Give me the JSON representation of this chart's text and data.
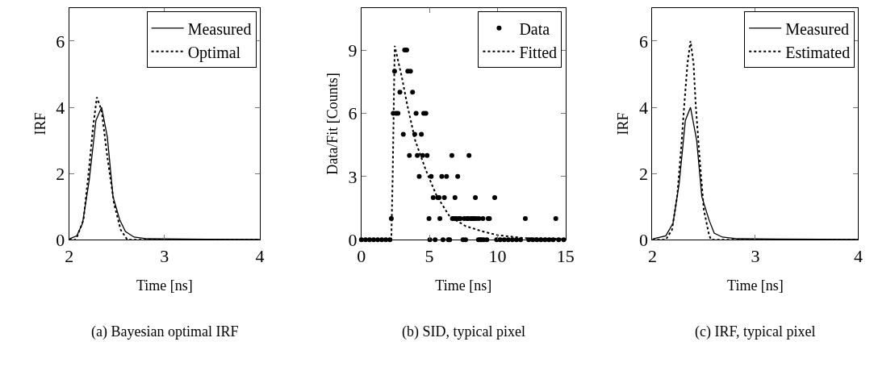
{
  "chart_data": [
    {
      "type": "line",
      "xlabel": "Time [ns]",
      "ylabel": "IRF",
      "annotations": [
        "(a) Bayesian optimal IRF"
      ],
      "xlim": [
        2,
        4
      ],
      "xticks": [
        2,
        3,
        4
      ],
      "ylim": [
        0,
        7
      ],
      "yticks": [
        0,
        2,
        4,
        6
      ],
      "legend": "top right",
      "series": [
        {
          "name": "Measured",
          "color": "#000000",
          "line_style": "solid",
          "x": [
            2.0,
            2.08,
            2.14,
            2.21,
            2.28,
            2.34,
            2.4,
            2.46,
            2.53,
            2.59,
            2.68,
            2.82,
            3.2,
            4.0
          ],
          "values": [
            0.02,
            0.12,
            0.5,
            1.8,
            3.6,
            4.0,
            3.1,
            1.3,
            0.6,
            0.25,
            0.08,
            0.03,
            0.02,
            0.01
          ]
        },
        {
          "name": "Optimal",
          "color": "#000000",
          "line_style": "dotted",
          "x": [
            2.0,
            2.07,
            2.15,
            2.21,
            2.25,
            2.29,
            2.34,
            2.4,
            2.47,
            2.54,
            2.61,
            3.0,
            4.0
          ],
          "values": [
            0,
            0,
            0.6,
            2.2,
            3.4,
            4.3,
            3.9,
            2.5,
            1.1,
            0.3,
            0,
            0,
            0
          ]
        }
      ]
    },
    {
      "type": "line",
      "xlabel": "Time [ns]",
      "ylabel": "Data/Fit [Counts]",
      "annotations": [
        "(b) SID, typical pixel"
      ],
      "xlim": [
        0,
        15
      ],
      "xticks": [
        0,
        5,
        10,
        15
      ],
      "ylim": [
        0,
        11
      ],
      "yticks": [
        0,
        3,
        6,
        9
      ],
      "legend": "top right",
      "series": [
        {
          "name": "Data",
          "color": "#000000",
          "type": "scatter",
          "marker": "circle",
          "x": [
            0,
            0.3,
            0.6,
            0.9,
            1.2,
            1.5,
            1.8,
            2.1,
            2.2,
            2.34,
            2.44,
            2.55,
            2.69,
            2.83,
            3.08,
            3.18,
            3.33,
            3.41,
            3.53,
            3.61,
            3.76,
            3.92,
            4.02,
            4.11,
            4.25,
            4.41,
            4.5,
            4.58,
            4.74,
            4.83,
            4.97,
            5.03,
            5.13,
            5.28,
            5.42,
            5.61,
            5.71,
            5.77,
            5.91,
            6.0,
            6.1,
            6.26,
            6.39,
            6.49,
            6.65,
            6.69,
            6.84,
            6.88,
            6.98,
            7.08,
            7.17,
            7.27,
            7.47,
            7.56,
            7.66,
            7.76,
            7.86,
            7.91,
            8.05,
            8.15,
            8.28,
            8.38,
            8.44,
            8.6,
            8.64,
            8.73,
            8.83,
            8.93,
            8.99,
            9.22,
            9.32,
            9.41,
            9.8,
            9.94,
            10.2,
            10.5,
            10.8,
            11.1,
            11.4,
            11.7,
            12.05,
            12.3,
            12.6,
            12.9,
            13.2,
            13.5,
            13.8,
            14.1,
            14.29,
            14.5,
            14.87
          ],
          "values": [
            0,
            0,
            0,
            0,
            0,
            0,
            0,
            0,
            1,
            6,
            8,
            6,
            6,
            7,
            5,
            9,
            9,
            8,
            4,
            8,
            7,
            5,
            6,
            4,
            3,
            5,
            4,
            6,
            6,
            4,
            1,
            0,
            3,
            2,
            0,
            2,
            2,
            1,
            3,
            0,
            2,
            3,
            0,
            0,
            4,
            1,
            1,
            2,
            1,
            3,
            1,
            1,
            0,
            1,
            0,
            1,
            1,
            4,
            1,
            1,
            1,
            2,
            1,
            0,
            1,
            0,
            0,
            1,
            0,
            0,
            1,
            1,
            2,
            0,
            0,
            0,
            0,
            0,
            0,
            0,
            1,
            0,
            0,
            0,
            0,
            0,
            0,
            0,
            1,
            0,
            0
          ]
        },
        {
          "name": "Fitted",
          "color": "#000000",
          "line_style": "dotted",
          "x": [
            0,
            2.2,
            2.3,
            2.45,
            2.98,
            3.37,
            3.96,
            4.74,
            5.52,
            6.49,
            7.66,
            8.83,
            10.0,
            11.95,
            14.87
          ],
          "values": [
            0,
            0,
            3,
            9.2,
            7.7,
            6.4,
            4.7,
            3.3,
            2.1,
            1.1,
            0.65,
            0.41,
            0.22,
            0.08,
            0.04
          ]
        }
      ]
    },
    {
      "type": "line",
      "xlabel": "Time [ns]",
      "ylabel": "IRF",
      "annotations": [
        "(c) IRF, typical pixel"
      ],
      "xlim": [
        2,
        4
      ],
      "xticks": [
        2,
        3,
        4
      ],
      "ylim": [
        0,
        7
      ],
      "yticks": [
        0,
        2,
        4,
        6
      ],
      "legend": "top right",
      "series": [
        {
          "name": "Measured",
          "color": "#000000",
          "line_style": "solid",
          "x": [
            2.0,
            2.13,
            2.2,
            2.26,
            2.32,
            2.37,
            2.43,
            2.48,
            2.55,
            2.6,
            2.68,
            2.83,
            3.2,
            4.0
          ],
          "values": [
            0.02,
            0.12,
            0.5,
            1.7,
            3.6,
            4.0,
            3.0,
            1.3,
            0.6,
            0.2,
            0.08,
            0.03,
            0.02,
            0.01
          ]
        },
        {
          "name": "Estimated",
          "color": "#000000",
          "line_style": "dotted",
          "x": [
            2.0,
            2.13,
            2.19,
            2.24,
            2.28,
            2.31,
            2.34,
            2.37,
            2.4,
            2.42,
            2.46,
            2.5,
            2.55,
            2.57,
            3.0,
            4.0
          ],
          "values": [
            0,
            0,
            0.3,
            1.3,
            2.8,
            4.1,
            5.3,
            6.0,
            5.3,
            4.1,
            2.4,
            0.9,
            0.15,
            0,
            0,
            0
          ]
        }
      ]
    }
  ]
}
